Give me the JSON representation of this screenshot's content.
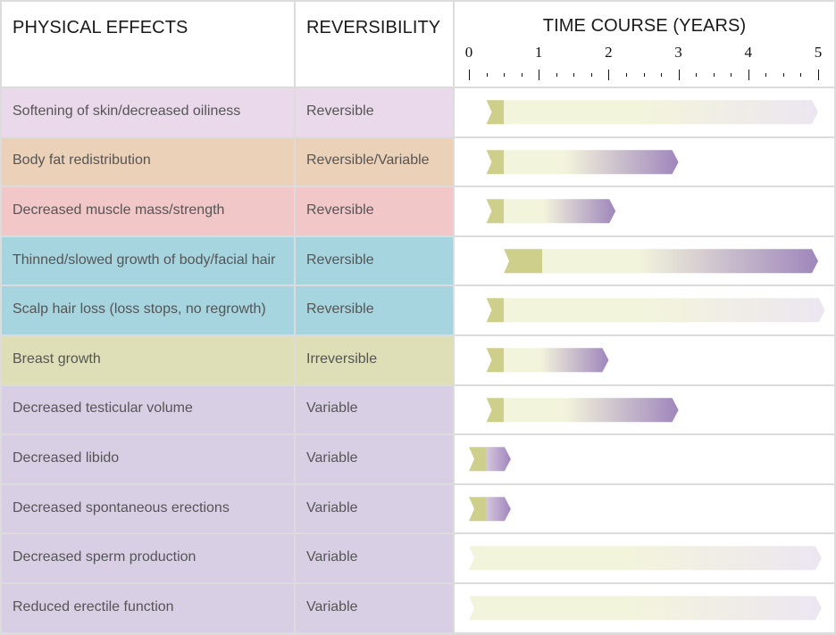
{
  "colors": {
    "pink": "#ead9ea",
    "peach": "#ecd1b9",
    "rose": "#f1c7c8",
    "blue": "#a6d4df",
    "olive": "#dfdfb7",
    "lavender": "#d9cfe5",
    "chevron": "#cfcf8c",
    "bar_light": "#f3f4dc",
    "bar_purple": "#9f86bc",
    "bar_lavender": "#ece6f1"
  },
  "header": {
    "effects": "PHYSICAL EFFECTS",
    "reversibility": "REVERSIBILITY",
    "timecourse": "TIME COURSE (YEARS)"
  },
  "chart_data": {
    "type": "table",
    "title": "TIME COURSE (YEARS)",
    "x_axis": {
      "range": [
        0,
        5
      ],
      "ticks": [
        "0",
        "1",
        "2",
        "3",
        "4",
        "5"
      ],
      "minor_ticks_per_interval": 3
    },
    "rows": [
      {
        "effect": "Softening of skin/decreased oiliness",
        "reversibility": "Reversible",
        "color": "pink",
        "onset": 0.25,
        "end": 5.0,
        "onset_marker_end": 0.5,
        "end_style": "fade"
      },
      {
        "effect": "Body fat redistribution",
        "reversibility": "Reversible/Variable",
        "color": "peach",
        "onset": 0.25,
        "end": 3.0,
        "onset_marker_end": 0.5,
        "end_style": "purple"
      },
      {
        "effect": "Decreased muscle mass/strength",
        "reversibility": "Reversible",
        "color": "rose",
        "onset": 0.25,
        "end": 2.1,
        "onset_marker_end": 0.5,
        "end_style": "purple"
      },
      {
        "effect": "Thinned/slowed growth of body/facial hair",
        "reversibility": "Reversible",
        "color": "blue",
        "onset": 0.5,
        "end": 5.0,
        "onset_marker_end": 1.05,
        "end_style": "purple"
      },
      {
        "effect": "Scalp hair loss (loss stops, no regrowth)",
        "reversibility": "Reversible",
        "color": "blue",
        "onset": 0.25,
        "end": 5.1,
        "onset_marker_end": 0.5,
        "end_style": "fade"
      },
      {
        "effect": "Breast growth",
        "reversibility": "Irreversible",
        "color": "olive",
        "onset": 0.25,
        "end": 2.0,
        "onset_marker_end": 0.5,
        "end_style": "purple"
      },
      {
        "effect": "Decreased testicular volume",
        "reversibility": "Variable",
        "color": "lavender",
        "onset": 0.25,
        "end": 3.0,
        "onset_marker_end": 0.5,
        "end_style": "purple"
      },
      {
        "effect": "Decreased libido",
        "reversibility": "Variable",
        "color": "lavender",
        "onset": 0.0,
        "end": 0.6,
        "onset_marker_end": 0.25,
        "end_style": "purple_short"
      },
      {
        "effect": "Decreased spontaneous erections",
        "reversibility": "Variable",
        "color": "lavender",
        "onset": 0.0,
        "end": 0.6,
        "onset_marker_end": 0.25,
        "end_style": "purple_short"
      },
      {
        "effect": "Decreased sperm production",
        "reversibility": "Variable",
        "color": "lavender",
        "onset": 0.0,
        "end": 5.05,
        "onset_marker_end": null,
        "end_style": "fade"
      },
      {
        "effect": "Reduced erectile function",
        "reversibility": "Variable",
        "color": "lavender",
        "onset": 0.0,
        "end": 5.05,
        "onset_marker_end": null,
        "end_style": "fade"
      }
    ]
  }
}
